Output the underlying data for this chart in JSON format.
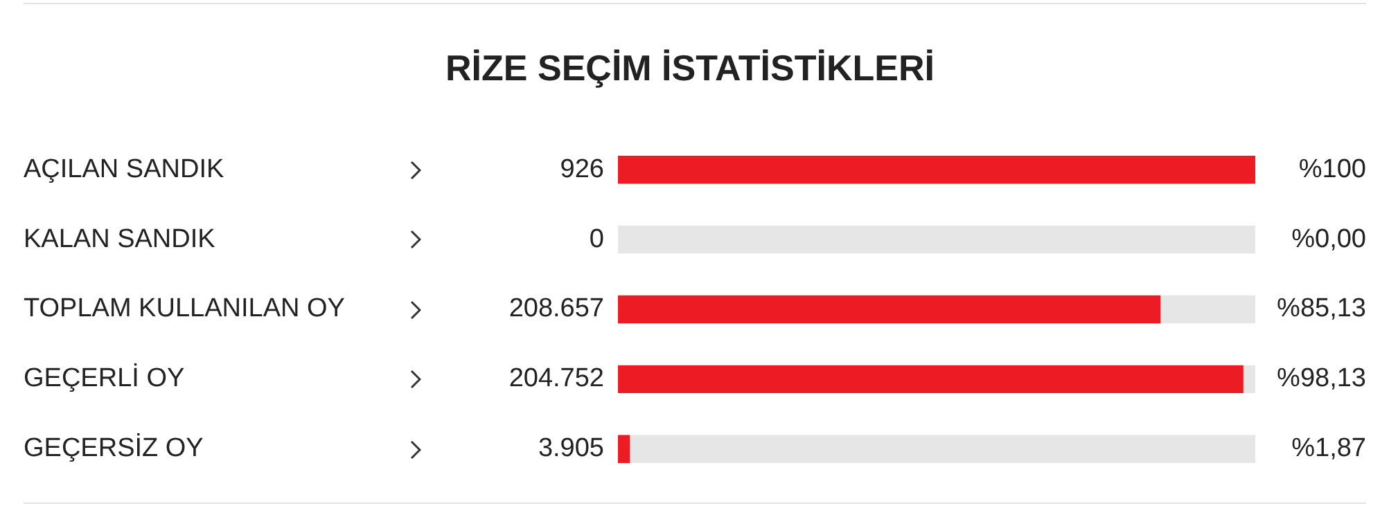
{
  "chart_data": {
    "type": "bar",
    "orientation": "horizontal",
    "stacked": true,
    "title": "RİZE SEÇİM İSTATİSTİKLERİ",
    "categories": [
      "AÇILAN SANDIK",
      "KALAN SANDIK",
      "TOPLAM KULLANILAN OY",
      "GEÇERLİ OY",
      "GEÇERSİZ OY"
    ],
    "series": [
      {
        "color": "#ed1c24",
        "values": [
          100,
          0,
          85.13,
          98.13,
          1.87
        ],
        "value_labels": [
          "%100",
          "%0,00",
          "%85,13",
          "%98,13",
          "%1,87"
        ]
      },
      {
        "color": "#e6e6e6",
        "values": [
          0,
          100,
          14.87,
          1.87,
          98.13
        ]
      }
    ],
    "xlim": [
      0,
      100
    ],
    "grid": false,
    "legend": false,
    "annotations": [
      "926",
      "0",
      "208.657",
      "204.752",
      "3.905"
    ]
  }
}
